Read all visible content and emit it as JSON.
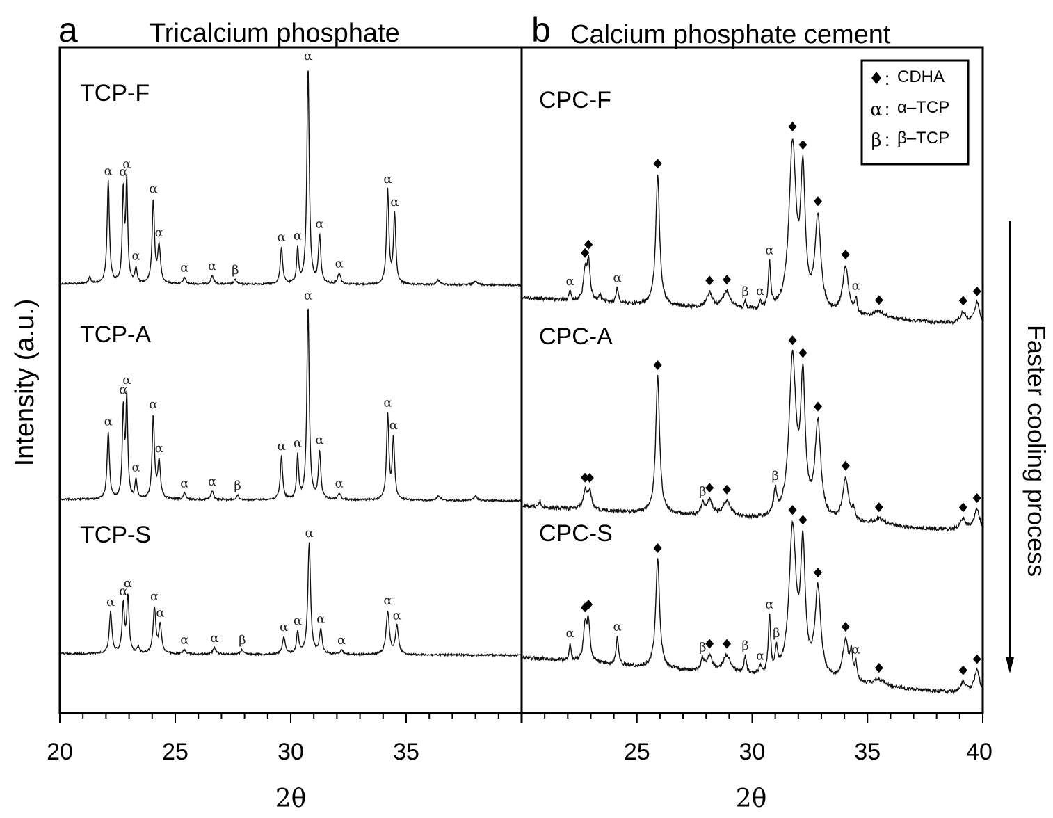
{
  "chart_data": [
    {
      "type": "line",
      "panel_label": "a",
      "title": "Tricalcium phosphate",
      "xlabel": "2θ",
      "ylabel": "Intensity (a.u.)",
      "xlim": [
        20,
        40
      ],
      "xticks": [
        20,
        25,
        30,
        35
      ],
      "minor_tick_step": 1,
      "series": [
        {
          "name": "TCP-F",
          "peaks": [
            [
              21.3,
              3,
              0.05,
              null
            ],
            [
              22.1,
              47,
              0.06,
              "α"
            ],
            [
              22.75,
              42,
              0.05,
              "α"
            ],
            [
              22.9,
              46,
              0.05,
              "α"
            ],
            [
              23.3,
              7,
              0.05,
              "α"
            ],
            [
              24.05,
              38,
              0.06,
              "α"
            ],
            [
              24.3,
              17,
              0.07,
              "α"
            ],
            [
              25.4,
              3,
              0.06,
              "α"
            ],
            [
              26.6,
              4,
              0.07,
              "α"
            ],
            [
              27.6,
              2,
              0.07,
              "β"
            ],
            [
              29.6,
              17,
              0.06,
              "α"
            ],
            [
              30.3,
              16,
              0.05,
              "α"
            ],
            [
              30.75,
              100,
              0.06,
              "α"
            ],
            [
              31.25,
              22,
              0.06,
              "α"
            ],
            [
              32.1,
              5,
              0.08,
              "α"
            ],
            [
              34.2,
              43,
              0.06,
              "α"
            ],
            [
              34.5,
              32,
              0.06,
              "α"
            ],
            [
              36.4,
              2,
              0.1,
              null
            ],
            [
              38.0,
              2,
              0.1,
              null
            ]
          ]
        },
        {
          "name": "TCP-A",
          "peaks": [
            [
              22.1,
              31,
              0.06,
              "α"
            ],
            [
              22.75,
              41,
              0.05,
              "α"
            ],
            [
              22.9,
              46,
              0.05,
              "α"
            ],
            [
              23.3,
              9,
              0.05,
              "α"
            ],
            [
              24.05,
              38,
              0.06,
              "α"
            ],
            [
              24.3,
              17,
              0.07,
              "α"
            ],
            [
              25.4,
              3,
              0.06,
              "α"
            ],
            [
              26.6,
              4,
              0.07,
              "α"
            ],
            [
              27.7,
              2,
              0.07,
              "β"
            ],
            [
              29.6,
              20,
              0.06,
              "α"
            ],
            [
              30.3,
              20,
              0.05,
              "α"
            ],
            [
              30.75,
              89,
              0.06,
              "α"
            ],
            [
              31.25,
              22,
              0.06,
              "α"
            ],
            [
              32.1,
              3,
              0.08,
              "α"
            ],
            [
              34.2,
              39,
              0.06,
              "α"
            ],
            [
              34.45,
              28,
              0.06,
              "α"
            ],
            [
              36.4,
              2,
              0.1,
              null
            ],
            [
              38.0,
              2,
              0.1,
              null
            ]
          ]
        },
        {
          "name": "TCP-S",
          "peaks": [
            [
              22.2,
              19,
              0.07,
              "α"
            ],
            [
              22.75,
              22,
              0.06,
              "α"
            ],
            [
              22.95,
              26,
              0.06,
              "α"
            ],
            [
              23.4,
              3,
              0.06,
              null
            ],
            [
              24.1,
              21,
              0.07,
              "α"
            ],
            [
              24.35,
              13,
              0.07,
              "α"
            ],
            [
              25.4,
              2,
              0.07,
              "α"
            ],
            [
              26.7,
              3,
              0.08,
              "α"
            ],
            [
              27.9,
              2,
              0.08,
              "β"
            ],
            [
              29.7,
              8,
              0.07,
              "α"
            ],
            [
              30.3,
              10,
              0.06,
              "α"
            ],
            [
              30.8,
              51,
              0.07,
              "α"
            ],
            [
              31.3,
              11,
              0.07,
              "α"
            ],
            [
              32.2,
              2,
              0.08,
              "α"
            ],
            [
              34.2,
              20,
              0.08,
              "α"
            ],
            [
              34.6,
              13,
              0.08,
              "α"
            ]
          ]
        }
      ]
    },
    {
      "type": "line",
      "panel_label": "b",
      "title": "Calcium phosphate cement",
      "xlabel": "2θ",
      "xlim": [
        20,
        40
      ],
      "xticks": [
        25,
        30,
        35,
        40
      ],
      "minor_tick_step": 1,
      "legend": {
        "position": "top-right",
        "entries": [
          {
            "symbol": "◆",
            "sep": ":",
            "label": "CDHA"
          },
          {
            "symbol": "α",
            "sep": ":",
            "label": "α–TCP"
          },
          {
            "symbol": "β",
            "sep": ":",
            "label": "β–TCP"
          }
        ]
      },
      "series": [
        {
          "name": "CPC-F",
          "peaks": [
            [
              22.1,
              4,
              0.05,
              "α"
            ],
            [
              22.75,
              13,
              0.08,
              "◆"
            ],
            [
              22.9,
              18,
              0.08,
              "◆"
            ],
            [
              23.4,
              3,
              0.06,
              null
            ],
            [
              24.15,
              7,
              0.06,
              "α"
            ],
            [
              25.9,
              60,
              0.1,
              "◆"
            ],
            [
              28.15,
              7,
              0.15,
              "◆"
            ],
            [
              28.9,
              8,
              0.2,
              "◆"
            ],
            [
              29.7,
              3,
              0.06,
              "β"
            ],
            [
              30.35,
              3,
              0.06,
              "α"
            ],
            [
              30.75,
              21,
              0.06,
              "α"
            ],
            [
              31.75,
              76,
              0.18,
              "◆"
            ],
            [
              32.2,
              60,
              0.12,
              "◆"
            ],
            [
              32.85,
              43,
              0.15,
              "◆"
            ],
            [
              34.05,
              22,
              0.15,
              "◆"
            ],
            [
              34.5,
              7,
              0.06,
              "α"
            ],
            [
              35.5,
              3,
              0.3,
              "◆"
            ],
            [
              39.15,
              5,
              0.15,
              "◆"
            ],
            [
              39.75,
              10,
              0.15,
              "◆"
            ]
          ]
        },
        {
          "name": "CPC-A",
          "peaks": [
            [
              20.8,
              3,
              0.05,
              null
            ],
            [
              22.75,
              8,
              0.1,
              "◆"
            ],
            [
              22.95,
              8,
              0.1,
              "◆"
            ],
            [
              25.9,
              63,
              0.1,
              "◆"
            ],
            [
              27.85,
              5,
              0.08,
              "β"
            ],
            [
              28.15,
              7,
              0.15,
              "◆"
            ],
            [
              28.9,
              7,
              0.2,
              "◆"
            ],
            [
              31.0,
              11,
              0.08,
              "β"
            ],
            [
              31.75,
              73,
              0.18,
              "◆"
            ],
            [
              32.2,
              60,
              0.12,
              "◆"
            ],
            [
              32.85,
              44,
              0.15,
              "◆"
            ],
            [
              34.05,
              20,
              0.15,
              "◆"
            ],
            [
              34.4,
              5,
              0.08,
              null
            ],
            [
              35.5,
              3,
              0.3,
              "◆"
            ],
            [
              39.15,
              5,
              0.15,
              "◆"
            ],
            [
              39.75,
              10,
              0.15,
              "◆"
            ]
          ]
        },
        {
          "name": "CPC-S",
          "peaks": [
            [
              22.1,
              8,
              0.05,
              "α"
            ],
            [
              22.75,
              16,
              0.08,
              "◆"
            ],
            [
              22.9,
              18,
              0.08,
              "◆"
            ],
            [
              24.15,
              13,
              0.06,
              "α"
            ],
            [
              25.9,
              50,
              0.1,
              "◆"
            ],
            [
              27.85,
              5,
              0.08,
              "β"
            ],
            [
              28.15,
              7,
              0.15,
              "◆"
            ],
            [
              28.9,
              8,
              0.2,
              "◆"
            ],
            [
              29.7,
              8,
              0.06,
              "β"
            ],
            [
              30.35,
              3,
              0.06,
              "α"
            ],
            [
              30.75,
              26,
              0.06,
              "α"
            ],
            [
              31.05,
              10,
              0.06,
              "β"
            ],
            [
              31.75,
              68,
              0.18,
              "◆"
            ],
            [
              32.2,
              57,
              0.12,
              "◆"
            ],
            [
              32.85,
              41,
              0.15,
              "◆"
            ],
            [
              34.05,
              19,
              0.15,
              "◆"
            ],
            [
              34.3,
              12,
              0.06,
              null
            ],
            [
              34.5,
              8,
              0.06,
              "α"
            ],
            [
              35.5,
              3,
              0.3,
              "◆"
            ],
            [
              39.15,
              5,
              0.15,
              "◆"
            ],
            [
              39.75,
              11,
              0.15,
              "◆"
            ]
          ]
        }
      ]
    }
  ],
  "annotation": {
    "text": "Faster cooling process",
    "arrow": "down"
  }
}
